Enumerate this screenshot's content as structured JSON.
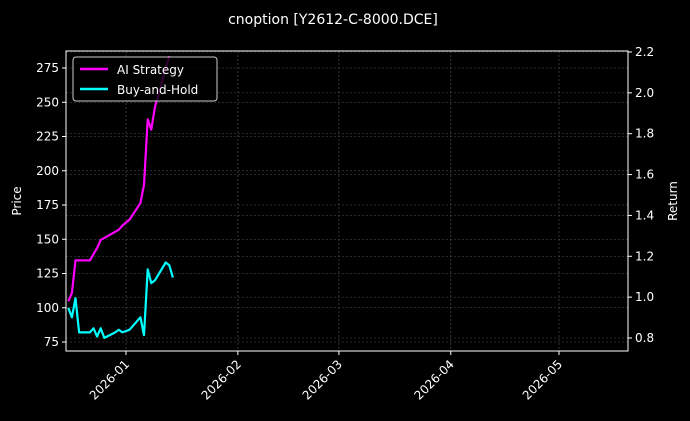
{
  "title": "cnoption [Y2612-C-8000.DCE]",
  "colors": {
    "background": "#000000",
    "ai_strategy": "#ff00ff",
    "buy_and_hold": "#00ffff",
    "grid": "#666666",
    "axis": "#ffffff"
  },
  "legend": {
    "items": [
      {
        "label": "AI Strategy",
        "color": "#ff00ff"
      },
      {
        "label": "Buy-and-Hold",
        "color": "#00ffff"
      }
    ]
  },
  "axes": {
    "left_label": "Price",
    "right_label": "Return",
    "left_ticks": [
      "75",
      "100",
      "125",
      "150",
      "175",
      "200",
      "225",
      "250",
      "275"
    ],
    "right_ticks": [
      "0.8",
      "1.0",
      "1.2",
      "1.4",
      "1.6",
      "1.8",
      "2.0",
      "2.2"
    ],
    "x_ticks": [
      "2026-01",
      "2026-02",
      "2026-03",
      "2026-04",
      "2026-05"
    ]
  },
  "chart_data": {
    "type": "line",
    "title": "cnoption [Y2612-C-8000.DCE]",
    "xlabel": "",
    "ylabel": "Price",
    "ylabel_right": "Return",
    "ylim": [
      68,
      287
    ],
    "ylim_right": [
      0.75,
      2.2
    ],
    "grid": true,
    "legend_position": "upper left",
    "x_range": [
      "2025-12-15",
      "2026-05-15"
    ],
    "series": [
      {
        "name": "AI Strategy",
        "axis": "right",
        "x": [
          "2025-12-16",
          "2025-12-17",
          "2025-12-18",
          "2025-12-19",
          "2025-12-22",
          "2025-12-23",
          "2025-12-24",
          "2025-12-25",
          "2025-12-26",
          "2025-12-29",
          "2025-12-30",
          "2025-12-31",
          "2026-01-02",
          "2026-01-05",
          "2026-01-06",
          "2026-01-07",
          "2026-01-08",
          "2026-01-09",
          "2026-01-12",
          "2026-01-13"
        ],
        "values": [
          0.98,
          1.02,
          1.18,
          1.18,
          1.18,
          1.21,
          1.24,
          1.28,
          1.29,
          1.32,
          1.33,
          1.35,
          1.38,
          1.46,
          1.55,
          1.87,
          1.82,
          1.93,
          2.12,
          2.18
        ]
      },
      {
        "name": "Buy-and-Hold",
        "axis": "left",
        "x": [
          "2025-12-16",
          "2025-12-17",
          "2025-12-18",
          "2025-12-19",
          "2025-12-22",
          "2025-12-23",
          "2025-12-24",
          "2025-12-25",
          "2025-12-26",
          "2025-12-29",
          "2025-12-30",
          "2025-12-31",
          "2026-01-02",
          "2026-01-05",
          "2026-01-06",
          "2026-01-07",
          "2026-01-08",
          "2026-01-09",
          "2026-01-12",
          "2026-01-13",
          "2026-01-14"
        ],
        "values": [
          100,
          93,
          107,
          82,
          82,
          85,
          79,
          85,
          78,
          82,
          84,
          82,
          84,
          93,
          80,
          128,
          118,
          120,
          133,
          131,
          122
        ]
      }
    ]
  }
}
